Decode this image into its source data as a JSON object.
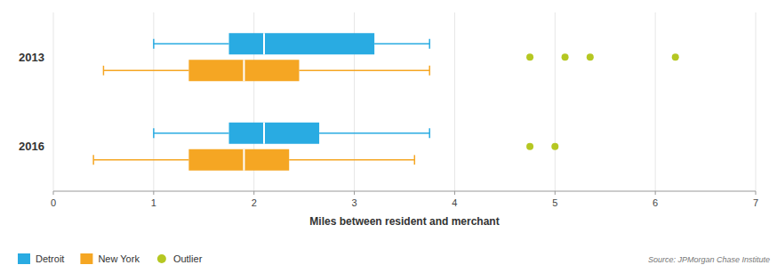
{
  "chart_data": {
    "type": "box",
    "orientation": "horizontal",
    "xlabel": "Miles between resident and merchant",
    "categories": [
      "2013",
      "2016"
    ],
    "xlim": [
      0,
      7
    ],
    "xticks": [
      0,
      1,
      2,
      3,
      4,
      5,
      6,
      7
    ],
    "grid": true,
    "legend": "bottom",
    "source": "Source: JPMorgan Chase Institute",
    "series": [
      {
        "name": "Detroit",
        "color": "#29ABE2",
        "whislo": [
          1.0,
          1.0
        ],
        "q1": [
          1.75,
          1.75
        ],
        "med": [
          2.1,
          2.1
        ],
        "q3": [
          3.2,
          2.65
        ],
        "whishi": [
          3.75,
          3.75
        ]
      },
      {
        "name": "New York",
        "color": "#F5A623",
        "whislo": [
          0.5,
          0.4
        ],
        "q1": [
          1.35,
          1.35
        ],
        "med": [
          1.9,
          1.9
        ],
        "q3": [
          2.45,
          2.35
        ],
        "whishi": [
          3.75,
          3.6
        ]
      },
      {
        "name": "Outlier",
        "type": "scatter",
        "marker": "circle",
        "color": "#B5C722",
        "values": [
          [
            4.75,
            5.1,
            5.35,
            6.2
          ],
          [
            4.75,
            5.0
          ]
        ]
      }
    ]
  }
}
